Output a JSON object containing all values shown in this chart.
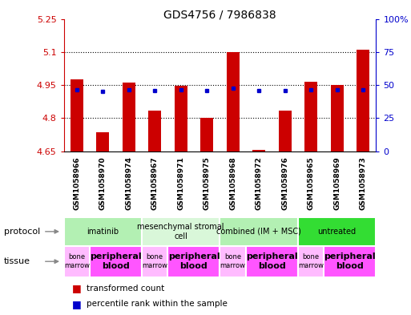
{
  "title": "GDS4756 / 7986838",
  "samples": [
    "GSM1058966",
    "GSM1058970",
    "GSM1058974",
    "GSM1058967",
    "GSM1058971",
    "GSM1058975",
    "GSM1058968",
    "GSM1058972",
    "GSM1058976",
    "GSM1058965",
    "GSM1058969",
    "GSM1058973"
  ],
  "red_values": [
    4.975,
    4.735,
    4.96,
    4.835,
    4.945,
    4.8,
    5.1,
    4.655,
    4.835,
    4.965,
    4.95,
    5.11
  ],
  "blue_values": [
    4.93,
    4.92,
    4.93,
    4.925,
    4.93,
    4.925,
    4.935,
    4.925,
    4.925,
    4.93,
    4.928,
    4.93
  ],
  "ymin": 4.65,
  "ymax": 5.25,
  "yticks_left": [
    4.65,
    4.8,
    4.95,
    5.1,
    5.25
  ],
  "ytick_labels_right": [
    "0",
    "25",
    "50",
    "75",
    "100%"
  ],
  "protocols": [
    {
      "label": "imatinib",
      "start": 0,
      "end": 3,
      "color": "#b3f0b3"
    },
    {
      "label": "mesenchymal stromal\ncell",
      "start": 3,
      "end": 6,
      "color": "#d9f7d9"
    },
    {
      "label": "combined (IM + MSC)",
      "start": 6,
      "end": 9,
      "color": "#b3f0b3"
    },
    {
      "label": "untreated",
      "start": 9,
      "end": 12,
      "color": "#33dd33"
    }
  ],
  "tissues": [
    {
      "label": "bone\nmarrow",
      "start": 0,
      "end": 1,
      "color": "#ffbbff"
    },
    {
      "label": "peripheral\nblood",
      "start": 1,
      "end": 3,
      "color": "#ff55ff"
    },
    {
      "label": "bone\nmarrow",
      "start": 3,
      "end": 4,
      "color": "#ffbbff"
    },
    {
      "label": "peripheral\nblood",
      "start": 4,
      "end": 6,
      "color": "#ff55ff"
    },
    {
      "label": "bone\nmarrow",
      "start": 6,
      "end": 7,
      "color": "#ffbbff"
    },
    {
      "label": "peripheral\nblood",
      "start": 7,
      "end": 9,
      "color": "#ff55ff"
    },
    {
      "label": "bone\nmarrow",
      "start": 9,
      "end": 10,
      "color": "#ffbbff"
    },
    {
      "label": "peripheral\nblood",
      "start": 10,
      "end": 12,
      "color": "#ff55ff"
    }
  ],
  "bar_color": "#cc0000",
  "dot_color": "#0000cc",
  "label_color_left": "#cc0000",
  "label_color_right": "#0000cc",
  "bg_color": "#ffffff",
  "sample_bg_color": "#cccccc"
}
